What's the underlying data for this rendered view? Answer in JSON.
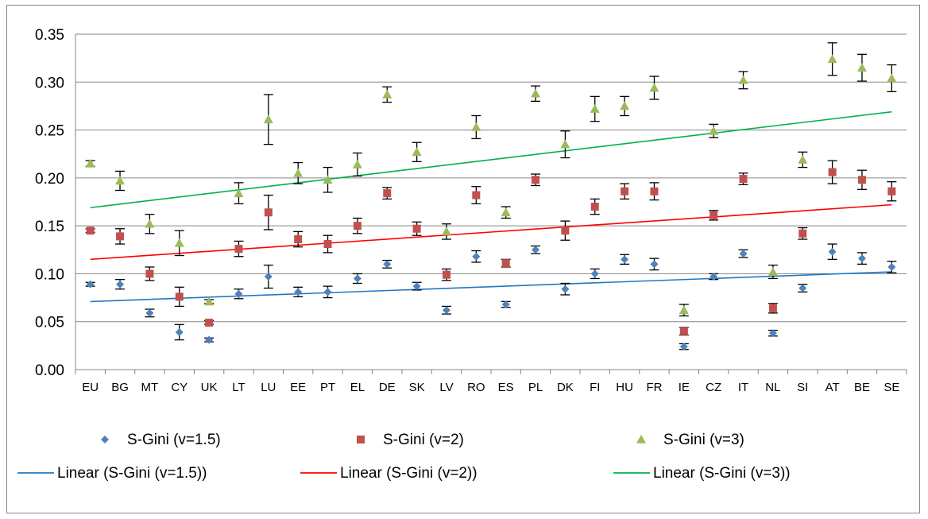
{
  "chart_data": {
    "type": "scatter",
    "categories": [
      "EU",
      "BG",
      "MT",
      "CY",
      "UK",
      "LT",
      "LU",
      "EE",
      "PT",
      "EL",
      "DE",
      "SK",
      "LV",
      "RO",
      "ES",
      "PL",
      "DK",
      "FI",
      "HU",
      "FR",
      "IE",
      "CZ",
      "IT",
      "NL",
      "SI",
      "AT",
      "BE",
      "SE"
    ],
    "ylim": [
      0,
      0.35
    ],
    "yticks": [
      "0.00",
      "0.05",
      "0.10",
      "0.15",
      "0.20",
      "0.25",
      "0.30",
      "0.35"
    ],
    "grid": "horizontal",
    "legend_position": "bottom",
    "series": [
      {
        "name": "S-Gini (v=1.5)",
        "marker": "diamond",
        "color": "#4F81BD",
        "values": [
          0.089,
          0.089,
          0.059,
          0.039,
          0.031,
          0.079,
          0.097,
          0.081,
          0.081,
          0.095,
          0.11,
          0.087,
          0.062,
          0.118,
          0.068,
          0.125,
          0.084,
          0.1,
          0.115,
          0.11,
          0.024,
          0.097,
          0.121,
          0.038,
          0.085,
          0.123,
          0.116,
          0.107
        ],
        "errors": [
          0.002,
          0.005,
          0.004,
          0.008,
          0.002,
          0.005,
          0.012,
          0.005,
          0.006,
          0.005,
          0.004,
          0.004,
          0.004,
          0.006,
          0.003,
          0.004,
          0.006,
          0.005,
          0.005,
          0.006,
          0.003,
          0.003,
          0.004,
          0.003,
          0.004,
          0.008,
          0.006,
          0.006
        ]
      },
      {
        "name": "S-Gini (v=2)",
        "marker": "square",
        "color": "#C0504D",
        "values": [
          0.145,
          0.139,
          0.1,
          0.076,
          0.049,
          0.126,
          0.164,
          0.136,
          0.131,
          0.15,
          0.184,
          0.147,
          0.099,
          0.182,
          0.111,
          0.198,
          0.145,
          0.17,
          0.186,
          0.186,
          0.04,
          0.161,
          0.199,
          0.064,
          0.142,
          0.206,
          0.198,
          0.186
        ],
        "errors": [
          0.002,
          0.008,
          0.007,
          0.01,
          0.002,
          0.008,
          0.018,
          0.008,
          0.009,
          0.008,
          0.006,
          0.007,
          0.006,
          0.009,
          0.004,
          0.006,
          0.01,
          0.008,
          0.008,
          0.009,
          0.004,
          0.005,
          0.006,
          0.005,
          0.006,
          0.012,
          0.01,
          0.01
        ]
      },
      {
        "name": "S-Gini (v=3)",
        "marker": "triangle",
        "color": "#9BBB59",
        "values": [
          0.215,
          0.197,
          0.152,
          0.132,
          0.071,
          0.184,
          0.261,
          0.205,
          0.198,
          0.214,
          0.287,
          0.227,
          0.144,
          0.253,
          0.164,
          0.288,
          0.235,
          0.272,
          0.275,
          0.294,
          0.062,
          0.249,
          0.302,
          0.102,
          0.219,
          0.324,
          0.315,
          0.304
        ],
        "errors": [
          0.003,
          0.01,
          0.01,
          0.013,
          0.002,
          0.011,
          0.026,
          0.011,
          0.013,
          0.012,
          0.008,
          0.01,
          0.008,
          0.012,
          0.006,
          0.008,
          0.014,
          0.013,
          0.01,
          0.012,
          0.006,
          0.007,
          0.009,
          0.007,
          0.008,
          0.017,
          0.014,
          0.014
        ]
      }
    ],
    "trendlines": [
      {
        "name": "Linear (S-Gini (v=1.5))",
        "color": "#1F77C4",
        "start": 0.071,
        "end": 0.102
      },
      {
        "name": "Linear (S-Gini (v=2))",
        "color": "#FF0000",
        "start": 0.115,
        "end": 0.172
      },
      {
        "name": "Linear (S-Gini (v=3))",
        "color": "#00B050",
        "start": 0.169,
        "end": 0.269
      }
    ]
  }
}
